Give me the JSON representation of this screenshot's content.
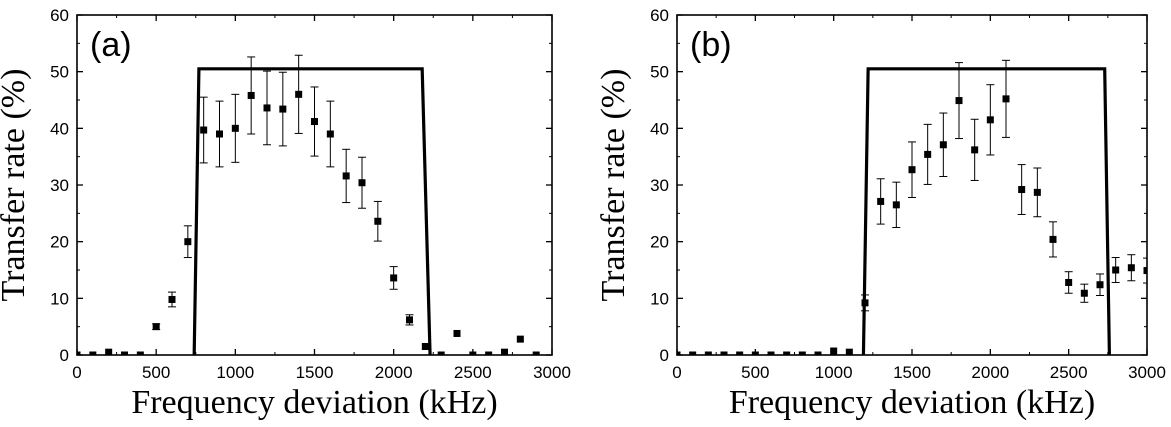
{
  "chart_data": [
    {
      "type": "scatter",
      "panel_label": "(a)",
      "xlabel": "Frequency deviation (kHz)",
      "ylabel": "Transfer rate (%)",
      "xlim": [
        0,
        3000
      ],
      "ylim": [
        0,
        60
      ],
      "xticks": [
        0,
        500,
        1000,
        1500,
        2000,
        2500,
        3000
      ],
      "yticks": [
        0,
        10,
        20,
        30,
        40,
        50,
        60
      ],
      "grid": false,
      "legend": "none",
      "series": [
        {
          "kind": "points_with_errorbars",
          "color": "#000000",
          "points": [
            {
              "x": 0,
              "y": 0,
              "err": 0
            },
            {
              "x": 100,
              "y": 0,
              "err": 0
            },
            {
              "x": 200,
              "y": 0.5,
              "err": 0
            },
            {
              "x": 300,
              "y": 0,
              "err": 0
            },
            {
              "x": 400,
              "y": 0,
              "err": 0
            },
            {
              "x": 500,
              "y": 5,
              "err": 0.5
            },
            {
              "x": 600,
              "y": 9.8,
              "err": 1.3
            },
            {
              "x": 700,
              "y": 20,
              "err": 2.8
            },
            {
              "x": 800,
              "y": 39.7,
              "err": 5.8
            },
            {
              "x": 900,
              "y": 39,
              "err": 5.8
            },
            {
              "x": 1000,
              "y": 40,
              "err": 6
            },
            {
              "x": 1100,
              "y": 45.8,
              "err": 6.8
            },
            {
              "x": 1200,
              "y": 43.6,
              "err": 6.5
            },
            {
              "x": 1300,
              "y": 43.4,
              "err": 6.5
            },
            {
              "x": 1400,
              "y": 46,
              "err": 6.9
            },
            {
              "x": 1500,
              "y": 41.2,
              "err": 6.1
            },
            {
              "x": 1600,
              "y": 39,
              "err": 5.8
            },
            {
              "x": 1700,
              "y": 31.6,
              "err": 4.7
            },
            {
              "x": 1800,
              "y": 30.4,
              "err": 4.5
            },
            {
              "x": 1900,
              "y": 23.6,
              "err": 3.5
            },
            {
              "x": 2000,
              "y": 13.6,
              "err": 2
            },
            {
              "x": 2100,
              "y": 6.2,
              "err": 0.9
            },
            {
              "x": 2200,
              "y": 1.5,
              "err": 0
            },
            {
              "x": 2300,
              "y": 0,
              "err": 0
            },
            {
              "x": 2400,
              "y": 3.8,
              "err": 0
            },
            {
              "x": 2500,
              "y": 0,
              "err": 0
            },
            {
              "x": 2600,
              "y": 0,
              "err": 0
            },
            {
              "x": 2700,
              "y": 0.5,
              "err": 0
            },
            {
              "x": 2800,
              "y": 2.8,
              "err": 0
            },
            {
              "x": 2900,
              "y": 0,
              "err": 0
            }
          ]
        },
        {
          "kind": "line",
          "color": "#000000",
          "x": [
            740,
            770,
            2180,
            2230
          ],
          "y": [
            0,
            50.5,
            50.5,
            0
          ]
        }
      ]
    },
    {
      "type": "scatter",
      "panel_label": "(b)",
      "xlabel": "Frequency deviation (kHz)",
      "ylabel": "Transfer rate (%)",
      "xlim": [
        0,
        3000
      ],
      "ylim": [
        0,
        60
      ],
      "xticks": [
        0,
        500,
        1000,
        1500,
        2000,
        2500,
        3000
      ],
      "yticks": [
        0,
        10,
        20,
        30,
        40,
        50,
        60
      ],
      "grid": false,
      "legend": "none",
      "series": [
        {
          "kind": "points_with_errorbars",
          "color": "#000000",
          "points": [
            {
              "x": 0,
              "y": 0,
              "err": 0
            },
            {
              "x": 100,
              "y": 0,
              "err": 0
            },
            {
              "x": 200,
              "y": 0,
              "err": 0
            },
            {
              "x": 300,
              "y": 0,
              "err": 0
            },
            {
              "x": 400,
              "y": 0,
              "err": 0
            },
            {
              "x": 500,
              "y": 0,
              "err": 0
            },
            {
              "x": 600,
              "y": 0,
              "err": 0
            },
            {
              "x": 700,
              "y": 0,
              "err": 0
            },
            {
              "x": 800,
              "y": 0,
              "err": 0
            },
            {
              "x": 900,
              "y": 0,
              "err": 0
            },
            {
              "x": 1000,
              "y": 0.7,
              "err": 0
            },
            {
              "x": 1100,
              "y": 0.5,
              "err": 0
            },
            {
              "x": 1200,
              "y": 9.2,
              "err": 1.4
            },
            {
              "x": 1300,
              "y": 27.1,
              "err": 4
            },
            {
              "x": 1400,
              "y": 26.5,
              "err": 4
            },
            {
              "x": 1500,
              "y": 32.7,
              "err": 4.9
            },
            {
              "x": 1600,
              "y": 35.4,
              "err": 5.3
            },
            {
              "x": 1700,
              "y": 37.1,
              "err": 5.6
            },
            {
              "x": 1800,
              "y": 44.9,
              "err": 6.7
            },
            {
              "x": 1900,
              "y": 36.2,
              "err": 5.4
            },
            {
              "x": 2000,
              "y": 41.5,
              "err": 6.2
            },
            {
              "x": 2100,
              "y": 45.2,
              "err": 6.8
            },
            {
              "x": 2200,
              "y": 29.2,
              "err": 4.4
            },
            {
              "x": 2300,
              "y": 28.7,
              "err": 4.3
            },
            {
              "x": 2400,
              "y": 20.4,
              "err": 3.1
            },
            {
              "x": 2500,
              "y": 12.8,
              "err": 1.9
            },
            {
              "x": 2600,
              "y": 10.9,
              "err": 1.6
            },
            {
              "x": 2700,
              "y": 12.4,
              "err": 1.9
            },
            {
              "x": 2800,
              "y": 15,
              "err": 2.2
            },
            {
              "x": 2900,
              "y": 15.4,
              "err": 2.3
            },
            {
              "x": 3000,
              "y": 14.9,
              "err": 2.2
            }
          ]
        },
        {
          "kind": "line",
          "color": "#000000",
          "x": [
            1190,
            1220,
            2730,
            2760
          ],
          "y": [
            0,
            50.5,
            50.5,
            0
          ]
        }
      ]
    }
  ]
}
